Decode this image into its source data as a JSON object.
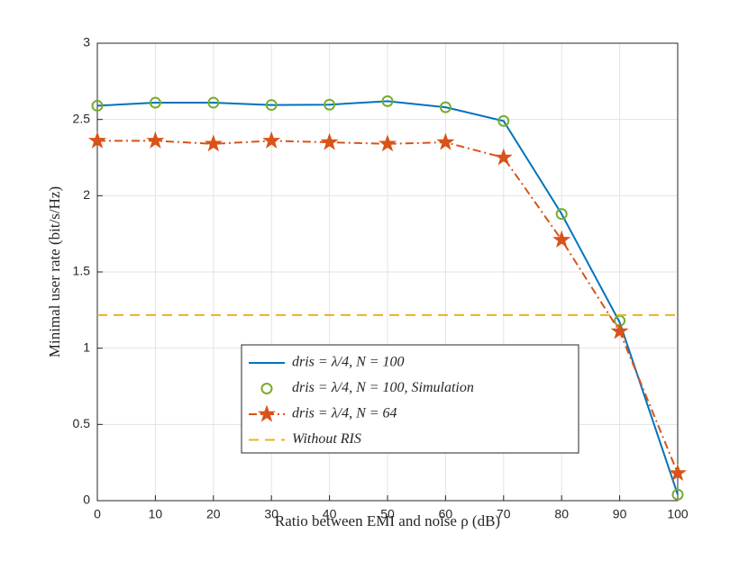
{
  "chart_data": {
    "type": "line",
    "xlabel": "Ratio between EMI and noise ρ (dB)",
    "ylabel": "Minimal user rate (bit/s/Hz)",
    "x": [
      0,
      10,
      20,
      30,
      40,
      50,
      60,
      70,
      80,
      90,
      100
    ],
    "series": [
      {
        "name": "dris = λ/4, N = 100",
        "color": "#0072bd",
        "line": "solid",
        "marker": "none",
        "values": [
          2.59,
          2.61,
          2.61,
          2.595,
          2.597,
          2.62,
          2.58,
          2.49,
          1.88,
          1.17,
          0.04
        ]
      },
      {
        "name": "dris = λ/4, N = 100, Simulation",
        "color": "#77ac30",
        "line": "none",
        "marker": "circle",
        "values": [
          2.59,
          2.61,
          2.61,
          2.595,
          2.597,
          2.62,
          2.58,
          2.49,
          1.88,
          1.18,
          0.04
        ]
      },
      {
        "name": "dris = λ/4, N = 64",
        "color": "#d95319",
        "line": "dashdot",
        "marker": "star",
        "values": [
          2.36,
          2.36,
          2.34,
          2.36,
          2.35,
          2.34,
          2.35,
          2.25,
          1.71,
          1.11,
          0.18
        ]
      },
      {
        "name": "Without RIS",
        "color": "#edb120",
        "line": "dashed",
        "marker": "none",
        "values": [
          1.217,
          1.217,
          1.217,
          1.217,
          1.217,
          1.217,
          1.217,
          1.217,
          1.217,
          1.217,
          1.217
        ]
      }
    ],
    "xlim": [
      0,
      100
    ],
    "xticks": [
      0,
      10,
      20,
      30,
      40,
      50,
      60,
      70,
      80,
      90,
      100
    ],
    "ylim": [
      0,
      3
    ],
    "yticks": [
      0,
      0.5,
      1,
      1.5,
      2,
      2.5,
      3
    ],
    "grid": true
  }
}
